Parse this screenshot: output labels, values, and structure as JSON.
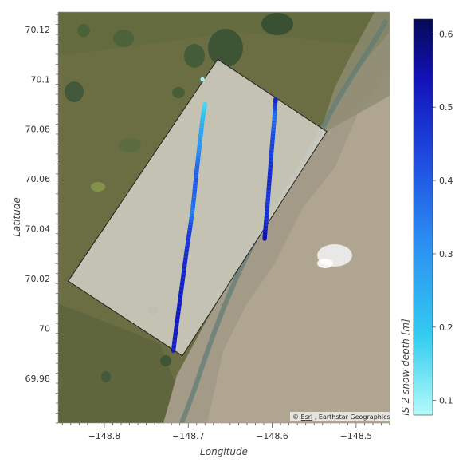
{
  "chart_data": {
    "type": "scatter",
    "title": "",
    "xlabel": "Longitude",
    "ylabel": "Latitude",
    "xlim": [
      -148.855,
      -148.46
    ],
    "ylim": [
      69.962,
      70.127
    ],
    "x_ticks": [
      -148.8,
      -148.7,
      -148.6,
      -148.5
    ],
    "x_tick_labels": [
      "−148.8",
      "−148.7",
      "−148.6",
      "−148.5"
    ],
    "y_ticks": [
      69.98,
      70.0,
      70.02,
      70.04,
      70.06,
      70.08,
      70.1,
      70.12
    ],
    "y_tick_labels": [
      "69.98",
      "70",
      "70.02",
      "70.04",
      "70.06",
      "70.08",
      "70.1",
      "70.12"
    ],
    "colorbar": {
      "label": "IS-2 snow depth [m]",
      "range": [
        0.08,
        0.62
      ],
      "ticks": [
        0.1,
        0.2,
        0.3,
        0.4,
        0.5,
        0.6
      ],
      "tick_labels": [
        "0.1",
        "0.2",
        "0.3",
        "0.4",
        "0.5",
        "0.6"
      ],
      "colors": [
        "#b4fbfa",
        "#33ccf0",
        "#2b8af2",
        "#1f4ae0",
        "#1212b8",
        "#050a55"
      ]
    },
    "footprint_polygon": {
      "lon": [
        -148.843,
        -148.665,
        -148.535,
        -148.707
      ],
      "lat": [
        70.019,
        70.108,
        70.079,
        69.989
      ]
    },
    "series": [
      {
        "lon": [
          -148.7178,
          -148.714,
          -148.71,
          -148.706,
          -148.702,
          -148.698,
          -148.695,
          -148.693,
          -148.691,
          -148.689,
          -148.687,
          -148.685,
          -148.683,
          -148.681,
          -148.68
        ],
        "lat": [
          69.991,
          70.001,
          70.011,
          70.021,
          70.031,
          70.04,
          70.047,
          70.053,
          70.06,
          70.066,
          70.072,
          70.078,
          70.084,
          70.088,
          70.09
        ],
        "depth": [
          0.5,
          0.52,
          0.51,
          0.5,
          0.48,
          0.45,
          0.34,
          0.38,
          0.4,
          0.37,
          0.31,
          0.27,
          0.23,
          0.19,
          0.17
        ]
      },
      {
        "lon": [
          -148.609,
          -148.607,
          -148.605,
          -148.603,
          -148.601,
          -148.599,
          -148.597,
          -148.596
        ],
        "lat": [
          70.036,
          70.044,
          70.052,
          70.061,
          70.07,
          70.078,
          70.086,
          70.092
        ],
        "depth": [
          0.55,
          0.48,
          0.46,
          0.49,
          0.45,
          0.42,
          0.36,
          0.5
        ]
      },
      {
        "lon": [
          -148.683
        ],
        "lat": [
          70.1
        ],
        "depth": [
          0.1
        ]
      }
    ]
  },
  "map": {
    "attribution_symbol": "©",
    "attribution_link": "Esri",
    "attribution_rest": ", Earthstar Geographics"
  },
  "colors": {
    "land": "#6b6e43",
    "river_plain": "#a49a88",
    "footprint_fill": "#d8d5cc",
    "footprint_stroke": "#222222",
    "lake": "#3e5535"
  }
}
